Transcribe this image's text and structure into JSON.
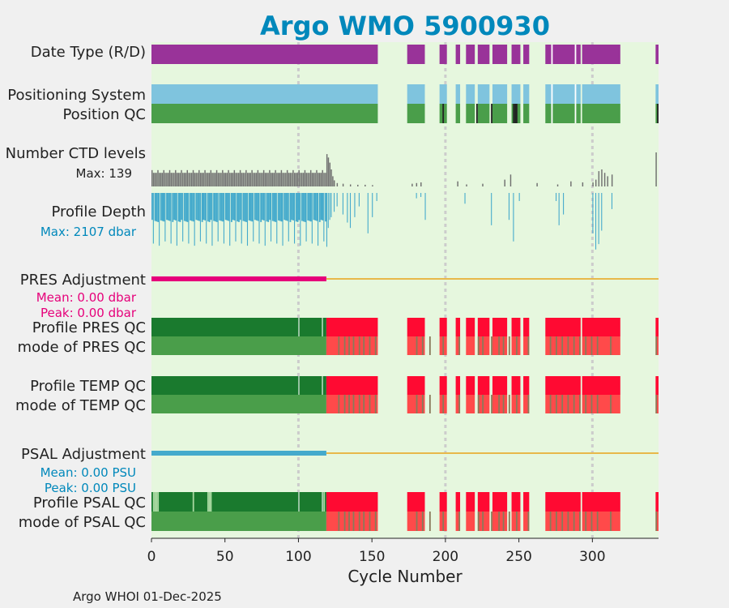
{
  "chart_data": {
    "type": "status-timeline",
    "title": "Argo WMO 5900930",
    "xlabel": "Cycle Number",
    "xlim": [
      0,
      345
    ],
    "xticks": [
      0,
      50,
      100,
      150,
      200,
      250,
      300
    ],
    "xtick_labels": [
      "0",
      "50",
      "100",
      "150",
      "200",
      "250",
      "300"
    ],
    "footer": "Argo WHOI 01-Dec-2025",
    "row_labels": {
      "date_type": "Date Type (R/D)",
      "positioning": "Positioning System",
      "position_qc": "Position QC",
      "ctd_levels": "Number CTD levels",
      "ctd_max": "Max: 139",
      "profile_depth": "Profile Depth",
      "depth_max": "Max: 2107 dbar",
      "pres_adj": "PRES Adjustment",
      "pres_mean": "Mean: 0.00 dbar",
      "pres_peak": "Peak: 0.00 dbar",
      "pres_qc": "Profile PRES QC",
      "pres_mode": "mode of PRES QC",
      "temp_qc": "Profile TEMP QC",
      "temp_mode": "mode of TEMP QC",
      "psal_adj": "PSAL Adjustment",
      "psal_mean": "Mean: 0.00 PSU",
      "psal_peak": "Peak: 0.00 PSU",
      "psal_qc": "Profile PSAL QC",
      "psal_mode": "mode of PSAL QC"
    },
    "segments": [
      [
        0,
        154
      ],
      [
        174,
        186
      ],
      [
        196,
        201
      ],
      [
        207,
        210
      ],
      [
        214,
        220
      ],
      [
        222,
        230
      ],
      [
        232,
        242
      ],
      [
        245,
        251
      ],
      [
        253,
        257
      ],
      [
        268,
        292
      ],
      [
        293,
        319
      ],
      [
        343,
        345
      ]
    ],
    "row_gaps": [
      [
        288,
        289
      ],
      [
        272,
        273
      ]
    ],
    "profile_qc_bad_from": 119,
    "profile_qc_white_lines": [
      100,
      116
    ],
    "psal_qc_light_cycles": [
      1,
      2,
      3,
      4,
      28,
      38,
      39,
      40,
      117
    ],
    "mode_qc_flag_cycles": [
      127,
      131,
      134,
      137,
      141,
      144,
      148,
      152,
      180,
      184,
      189,
      198,
      209,
      222,
      225,
      231,
      236,
      239,
      243,
      248,
      256,
      271,
      275,
      279,
      283,
      287,
      291,
      295,
      299,
      303,
      312,
      343
    ],
    "position_qc_black_cycles": [
      198,
      221,
      231,
      246,
      247,
      248,
      344
    ],
    "ctd_levels": {
      "max": 139,
      "main_range": [
        0,
        118
      ],
      "main_level": 0.4,
      "tail_values": [
        [
          119,
          0.95
        ],
        [
          120,
          0.85
        ],
        [
          121,
          0.7
        ],
        [
          122,
          0.5
        ],
        [
          123,
          0.3
        ],
        [
          124,
          0.18
        ],
        [
          126,
          0.1
        ],
        [
          130,
          0.08
        ],
        [
          135,
          0.06
        ],
        [
          140,
          0.05
        ],
        [
          145,
          0.05
        ],
        [
          150,
          0.04
        ],
        [
          177,
          0.08
        ],
        [
          180,
          0.1
        ],
        [
          183,
          0.12
        ],
        [
          208,
          0.15
        ],
        [
          214,
          0.06
        ],
        [
          225,
          0.08
        ],
        [
          240,
          0.2
        ],
        [
          244,
          0.35
        ],
        [
          262,
          0.1
        ],
        [
          276,
          0.06
        ],
        [
          285,
          0.15
        ],
        [
          293,
          0.12
        ],
        [
          300,
          0.12
        ],
        [
          302,
          0.2
        ],
        [
          304,
          0.45
        ],
        [
          306,
          0.5
        ],
        [
          308,
          0.4
        ],
        [
          310,
          0.3
        ],
        [
          313,
          0.35
        ],
        [
          343,
          1.0
        ]
      ]
    },
    "profile_depth": {
      "max": 2107,
      "main_range": [
        0,
        118
      ],
      "main_depth": 1000,
      "deep_range": [
        1800,
        2000
      ],
      "tail_values": [
        [
          119,
          2000
        ],
        [
          120,
          1300
        ],
        [
          121,
          1000
        ],
        [
          122,
          900
        ],
        [
          124,
          700
        ],
        [
          126,
          500
        ],
        [
          130,
          800
        ],
        [
          133,
          1100
        ],
        [
          135,
          1300
        ],
        [
          138,
          900
        ],
        [
          141,
          500
        ],
        [
          147,
          1500
        ],
        [
          150,
          900
        ],
        [
          153,
          300
        ],
        [
          180,
          200
        ],
        [
          183,
          150
        ],
        [
          186,
          1000
        ],
        [
          213,
          400
        ],
        [
          231,
          1200
        ],
        [
          243,
          1000
        ],
        [
          246,
          1800
        ],
        [
          250,
          300
        ],
        [
          275,
          300
        ],
        [
          277,
          1200
        ],
        [
          280,
          800
        ],
        [
          300,
          1500
        ],
        [
          302,
          2100
        ],
        [
          304,
          1900
        ],
        [
          306,
          1400
        ],
        [
          313,
          600
        ]
      ]
    },
    "colors": {
      "plot_bg": "#e6f7de",
      "date_type": "#993399",
      "positioning": "#7fc4de",
      "position_qc": "#4a9e4a",
      "position_qc_black": "#222222",
      "ctd_bar": "#707070",
      "depth_bar": "#44aacc",
      "pres_adj": "#e6007a",
      "psal_adj": "#44aacc",
      "adj_line": "#e8b84a",
      "qc_good": "#1a7a2e",
      "qc_bad": "#ff0a32",
      "mode_good": "#4a9e4a",
      "mode_bad": "#ff4a4a",
      "mode_flag": "#8a7a5a",
      "title": "#0088bb",
      "depth_max_text": "#0088bb",
      "psal_text": "#0088bb",
      "pres_text": "#e6007a",
      "gridline": "#cccccc"
    }
  }
}
